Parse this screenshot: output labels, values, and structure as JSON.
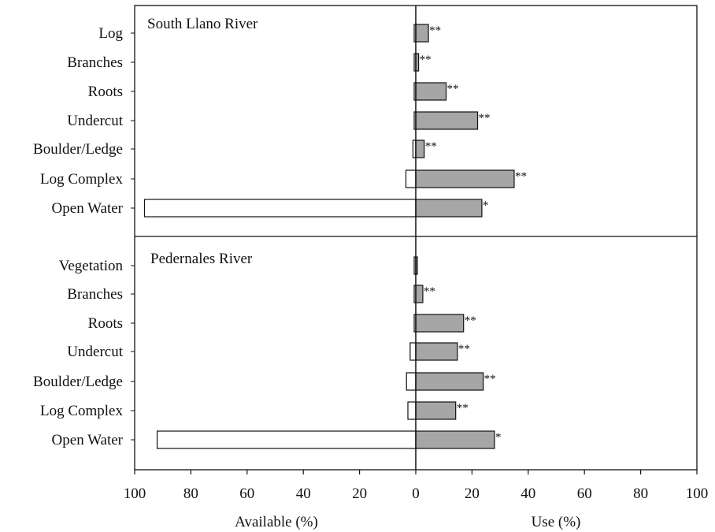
{
  "chart_data": {
    "type": "bar",
    "layout": "back-to-back horizontal bars, two stacked panels",
    "xlabel_left": "Available (%)",
    "xlabel_right": "Use (%)",
    "xlim_left": [
      100,
      0
    ],
    "xlim_right": [
      0,
      100
    ],
    "ticks_left": [
      "100",
      "80",
      "60",
      "40",
      "20",
      "0"
    ],
    "ticks_right": [
      "20",
      "40",
      "60",
      "80",
      "100"
    ],
    "available_color": "#ffffff",
    "use_color": "#a6a6a6",
    "panels": [
      {
        "title": "South Llano River",
        "categories": [
          "Log",
          "Branches",
          "Roots",
          "Undercut",
          "Boulder/Ledge",
          "Log Complex",
          "Open Water"
        ],
        "available": [
          0.2,
          0.5,
          0.3,
          0.5,
          1.0,
          3.5,
          96.5
        ],
        "use": [
          4.5,
          1.0,
          10.8,
          22.0,
          3.0,
          35.0,
          23.5
        ],
        "significance": [
          "**",
          "**",
          "**",
          "**",
          "**",
          "**",
          "*"
        ]
      },
      {
        "title": "Pedernales River",
        "categories": [
          "Vegetation",
          "Branches",
          "Roots",
          "Undercut",
          "Boulder/Ledge",
          "Log Complex",
          "Open Water"
        ],
        "available": [
          0.2,
          0.5,
          0.5,
          2.0,
          3.3,
          2.8,
          92.0
        ],
        "use": [
          0.2,
          2.5,
          17.0,
          14.8,
          24.0,
          14.2,
          28.0
        ],
        "significance": [
          "",
          "**",
          "**",
          "**",
          "**",
          "**",
          "*"
        ]
      }
    ]
  }
}
